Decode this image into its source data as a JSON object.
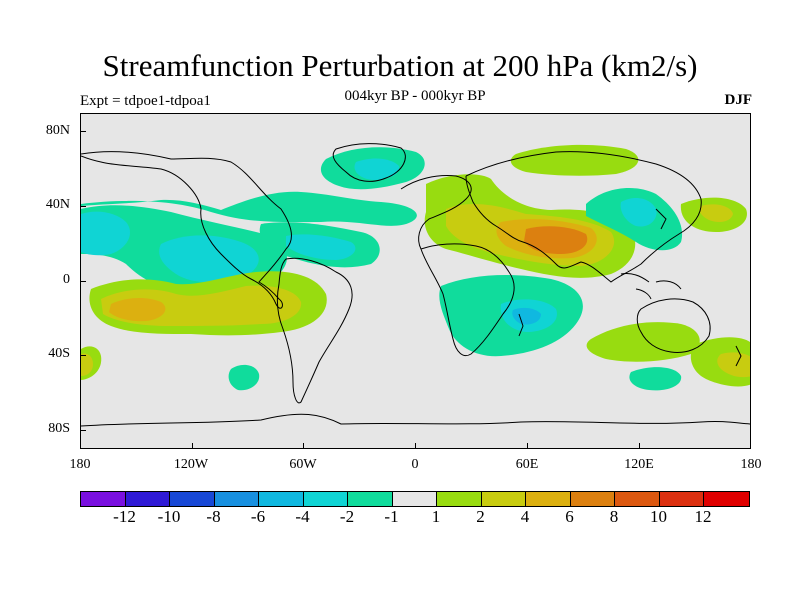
{
  "title": "Streamfunction Perturbation at 200 hPa (km2/s)",
  "subtitle": "004kyr BP - 000kyr BP",
  "left_label": "Expt = tdpoe1-tdpoa1",
  "right_label": "DJF",
  "axes": {
    "y_ticks": [
      "80N",
      "40N",
      "0",
      "40S",
      "80S"
    ],
    "x_ticks": [
      "180",
      "120W",
      "60W",
      "0",
      "60E",
      "120E",
      "180"
    ]
  },
  "colorbar": {
    "colors": [
      "#7a10e0",
      "#2f1ad6",
      "#1848d6",
      "#1890e0",
      "#10b8e0",
      "#10d4d4",
      "#10dc9c",
      "#e6e6e6",
      "#98dc10",
      "#c8cc10",
      "#dcb010",
      "#dc8010",
      "#dc5810",
      "#dc3010",
      "#e00000"
    ],
    "labels": [
      "-12",
      "-10",
      "-8",
      "-6",
      "-4",
      "-2",
      "-1",
      "1",
      "2",
      "4",
      "6",
      "8",
      "10",
      "12"
    ]
  },
  "colors": {
    "background": "#e6e6e6",
    "neg1": "#10dc9c",
    "neg2": "#10d4d4",
    "neg4": "#10b8e0",
    "pos1": "#98dc10",
    "pos2": "#c8cc10",
    "pos4": "#dcb010",
    "pos6": "#dc8010"
  }
}
